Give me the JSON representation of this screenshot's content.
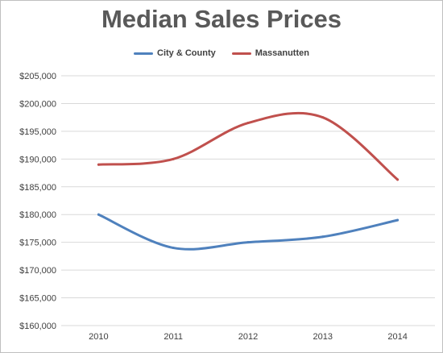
{
  "chart_data": {
    "type": "line",
    "title": "Median Sales Prices",
    "categories": [
      "2010",
      "2011",
      "2012",
      "2013",
      "2014"
    ],
    "series": [
      {
        "name": "City & County",
        "color": "#4f81bd",
        "values": [
          180000,
          174000,
          175000,
          176000,
          179000
        ]
      },
      {
        "name": "Massanutten",
        "color": "#c0504d",
        "values": [
          189000,
          190000,
          196500,
          197500,
          186300
        ]
      }
    ],
    "ylim": [
      160000,
      205000
    ],
    "yticks": [
      160000,
      165000,
      170000,
      175000,
      180000,
      185000,
      190000,
      195000,
      200000,
      205000
    ],
    "ytick_labels": [
      "$160,000",
      "$165,000",
      "$170,000",
      "$175,000",
      "$180,000",
      "$185,000",
      "$190,000",
      "$195,000",
      "$200,000",
      "$205,000"
    ],
    "xlabel": "",
    "ylabel": "",
    "grid": true,
    "legend": "top"
  }
}
